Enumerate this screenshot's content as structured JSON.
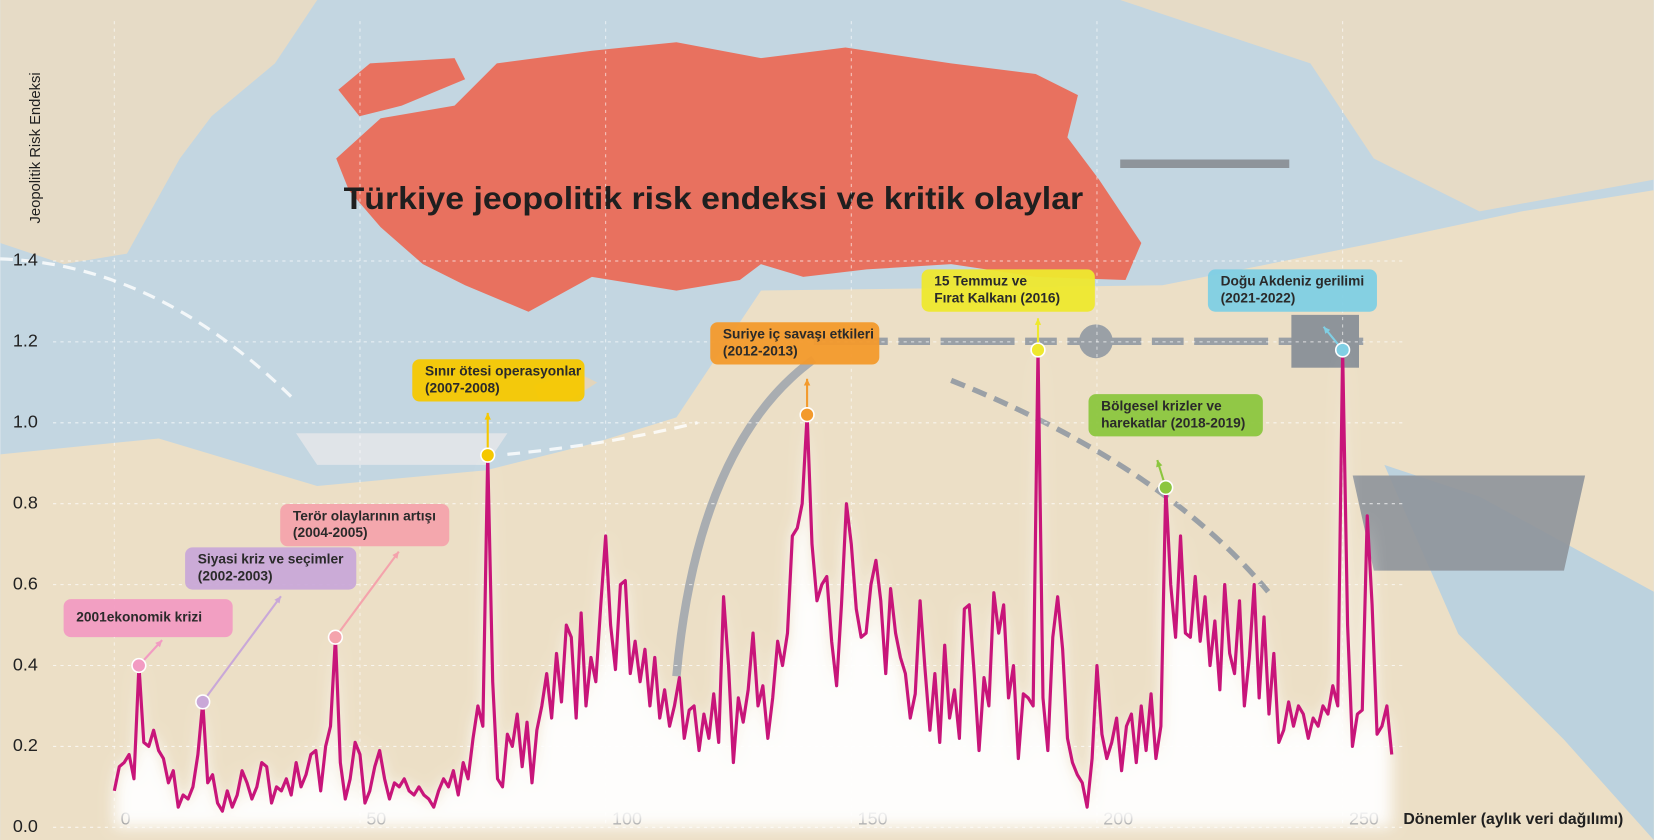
{
  "chart_data": {
    "type": "line",
    "title": "Türkiye jeopolitik risk endeksi ve kritik olaylar",
    "y_label": "Jeopolitik Risk Endeksi",
    "x_label": "Dönemler (aylık veri dağılımı)",
    "color": "#c8157a",
    "grid": true,
    "xlim": [
      0,
      262
    ],
    "ylim": [
      0,
      1.4
    ],
    "xticks": [
      0,
      50,
      100,
      150,
      200,
      250
    ],
    "yticks": [
      {
        "value": 0,
        "label": "0.0"
      },
      0.2,
      0.4,
      0.6,
      0.8,
      {
        "value": 1,
        "label": "1.0"
      },
      1.2,
      1.4
    ],
    "x": [
      0,
      1,
      2,
      3,
      4,
      5,
      6,
      7,
      8,
      9,
      10,
      11,
      12,
      13,
      14,
      15,
      16,
      17,
      18,
      19,
      20,
      21,
      22,
      23,
      24,
      25,
      26,
      27,
      28,
      29,
      30,
      31,
      32,
      33,
      34,
      35,
      36,
      37,
      38,
      39,
      40,
      41,
      42,
      43,
      44,
      45,
      46,
      47,
      48,
      49,
      50,
      51,
      52,
      53,
      54,
      55,
      56,
      57,
      58,
      59,
      60,
      61,
      62,
      63,
      64,
      65,
      66,
      67,
      68,
      69,
      70,
      71,
      72,
      73,
      74,
      75,
      76,
      77,
      78,
      79,
      80,
      81,
      82,
      83,
      84,
      85,
      86,
      87,
      88,
      89,
      90,
      91,
      92,
      93,
      94,
      95,
      96,
      97,
      98,
      99,
      100,
      101,
      102,
      103,
      104,
      105,
      106,
      107,
      108,
      109,
      110,
      111,
      112,
      113,
      114,
      115,
      116,
      117,
      118,
      119,
      120,
      121,
      122,
      123,
      124,
      125,
      126,
      127,
      128,
      129,
      130,
      131,
      132,
      133,
      134,
      135,
      136,
      137,
      138,
      139,
      140,
      141,
      142,
      143,
      144,
      145,
      146,
      147,
      148,
      149,
      150,
      151,
      152,
      153,
      154,
      155,
      156,
      157,
      158,
      159,
      160,
      161,
      162,
      163,
      164,
      165,
      166,
      167,
      168,
      169,
      170,
      171,
      172,
      173,
      174,
      175,
      176,
      177,
      178,
      179,
      180,
      181,
      182,
      183,
      184,
      185,
      186,
      187,
      188,
      189,
      190,
      191,
      192,
      193,
      194,
      195,
      196,
      197,
      198,
      199,
      200,
      201,
      202,
      203,
      204,
      205,
      206,
      207,
      208,
      209,
      210,
      211,
      212,
      213,
      214,
      215,
      216,
      217,
      218,
      219,
      220,
      221,
      222,
      223,
      224,
      225,
      226,
      227,
      228,
      229,
      230,
      231,
      232,
      233,
      234,
      235,
      236,
      237,
      238,
      239,
      240,
      241,
      242,
      243,
      244,
      245,
      246,
      247,
      248,
      249,
      250,
      251,
      252,
      253,
      254,
      255,
      256,
      257,
      258,
      259,
      260
    ],
    "values": [
      0.09,
      0.15,
      0.16,
      0.18,
      0.12,
      0.4,
      0.21,
      0.2,
      0.24,
      0.19,
      0.17,
      0.11,
      0.14,
      0.05,
      0.08,
      0.07,
      0.1,
      0.18,
      0.31,
      0.11,
      0.13,
      0.06,
      0.04,
      0.09,
      0.05,
      0.08,
      0.14,
      0.11,
      0.07,
      0.1,
      0.16,
      0.15,
      0.06,
      0.1,
      0.09,
      0.12,
      0.08,
      0.16,
      0.1,
      0.13,
      0.18,
      0.19,
      0.09,
      0.2,
      0.25,
      0.47,
      0.16,
      0.07,
      0.12,
      0.21,
      0.18,
      0.06,
      0.09,
      0.15,
      0.19,
      0.12,
      0.07,
      0.11,
      0.1,
      0.12,
      0.09,
      0.08,
      0.1,
      0.08,
      0.07,
      0.05,
      0.09,
      0.12,
      0.1,
      0.14,
      0.08,
      0.16,
      0.12,
      0.22,
      0.3,
      0.25,
      0.92,
      0.36,
      0.12,
      0.1,
      0.23,
      0.2,
      0.28,
      0.15,
      0.26,
      0.11,
      0.24,
      0.3,
      0.38,
      0.27,
      0.43,
      0.31,
      0.5,
      0.47,
      0.27,
      0.53,
      0.3,
      0.42,
      0.36,
      0.55,
      0.72,
      0.5,
      0.39,
      0.6,
      0.61,
      0.38,
      0.46,
      0.36,
      0.44,
      0.3,
      0.42,
      0.27,
      0.34,
      0.25,
      0.3,
      0.37,
      0.22,
      0.29,
      0.3,
      0.19,
      0.28,
      0.22,
      0.33,
      0.21,
      0.57,
      0.4,
      0.16,
      0.32,
      0.26,
      0.34,
      0.48,
      0.3,
      0.35,
      0.22,
      0.32,
      0.46,
      0.4,
      0.48,
      0.72,
      0.74,
      0.8,
      1.02,
      0.7,
      0.56,
      0.6,
      0.62,
      0.46,
      0.35,
      0.55,
      0.8,
      0.7,
      0.54,
      0.47,
      0.48,
      0.6,
      0.66,
      0.56,
      0.38,
      0.59,
      0.48,
      0.42,
      0.38,
      0.27,
      0.33,
      0.56,
      0.39,
      0.24,
      0.38,
      0.21,
      0.45,
      0.27,
      0.34,
      0.22,
      0.54,
      0.55,
      0.38,
      0.19,
      0.37,
      0.3,
      0.58,
      0.48,
      0.55,
      0.32,
      0.4,
      0.17,
      0.33,
      0.32,
      0.3,
      1.18,
      0.32,
      0.19,
      0.47,
      0.57,
      0.44,
      0.22,
      0.16,
      0.13,
      0.11,
      0.05,
      0.17,
      0.4,
      0.23,
      0.17,
      0.21,
      0.27,
      0.14,
      0.25,
      0.28,
      0.16,
      0.3,
      0.19,
      0.33,
      0.17,
      0.25,
      0.84,
      0.6,
      0.47,
      0.72,
      0.48,
      0.47,
      0.62,
      0.46,
      0.57,
      0.4,
      0.51,
      0.34,
      0.6,
      0.43,
      0.38,
      0.56,
      0.3,
      0.42,
      0.6,
      0.32,
      0.52,
      0.28,
      0.43,
      0.21,
      0.24,
      0.31,
      0.25,
      0.3,
      0.28,
      0.22,
      0.27,
      0.25,
      0.3,
      0.28,
      0.35,
      0.3,
      1.18,
      0.5,
      0.2,
      0.28,
      0.29,
      0.77,
      0.55,
      0.23,
      0.25,
      0.3,
      0.18
    ],
    "events": [
      {
        "label": [
          "2001ekonomik krizi"
        ],
        "x": 5,
        "y": 0.4,
        "color": "#f29bc2"
      },
      {
        "label": [
          "Siyasi kriz ve seçimler",
          "(2002-2003)"
        ],
        "x": 18,
        "y": 0.31,
        "color": "#c9a8d8"
      },
      {
        "label": [
          "Terör olaylarının artışı",
          "(2004-2005)"
        ],
        "x": 45,
        "y": 0.47,
        "color": "#f4a3ac"
      },
      {
        "label": [
          "Sınır ötesi operasyonlar",
          "(2007-2008)"
        ],
        "x": 76,
        "y": 0.92,
        "color": "#f5c800"
      },
      {
        "label": [
          "Suriye iç savaşı etkileri",
          "(2012-2013)"
        ],
        "x": 141,
        "y": 1.02,
        "color": "#f39a2c"
      },
      {
        "label": [
          "15 Temmuz ve",
          "Fırat Kalkanı (2016)"
        ],
        "x": 188,
        "y": 1.18,
        "color": "#eee82e"
      },
      {
        "label": [
          "Bölgesel krizler ve",
          "harekatlar (2018-2019)"
        ],
        "x": 214,
        "y": 0.84,
        "color": "#8cc63f"
      },
      {
        "label": [
          "Doğu Akdeniz gerilimi",
          "(2021-2022)"
        ],
        "x": 250,
        "y": 1.18,
        "color": "#80cfe4"
      }
    ]
  }
}
